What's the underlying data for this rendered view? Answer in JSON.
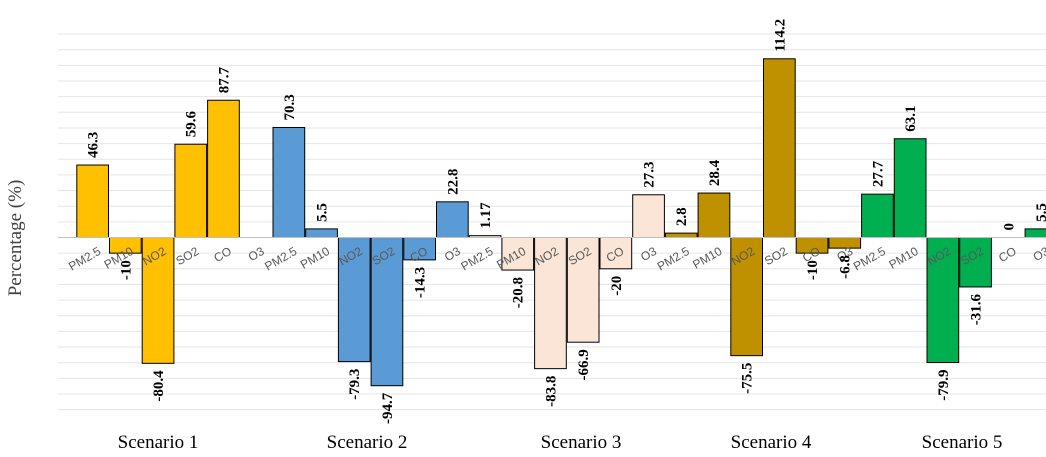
{
  "chart_data": {
    "type": "bar",
    "ylabel": "Percentage (%)",
    "ylim": [
      -110,
      130
    ],
    "grid": true,
    "categories": [
      "PM2.5",
      "PM10",
      "NO2",
      "SO2",
      "CO",
      "O3"
    ],
    "groups": [
      {
        "name": "Scenario 1",
        "color": "#FFC000",
        "values": [
          46.3,
          -10,
          -80.4,
          59.6,
          87.7,
          null
        ],
        "labels": [
          "46.3",
          "-10",
          "-80.4",
          "59.6",
          "87.7",
          ""
        ]
      },
      {
        "name": "Scenario 2",
        "color": "#5B9BD5",
        "values": [
          70.3,
          5.5,
          -79.3,
          -94.7,
          -14.3,
          22.8
        ],
        "labels": [
          "70.3",
          "5.5",
          "-79.3",
          "-94.7",
          "-14.3",
          "22.8"
        ]
      },
      {
        "name": "Scenario 3",
        "color": "#FBE5D6",
        "values": [
          1.17,
          -20.8,
          -83.8,
          -66.9,
          -20,
          27.3
        ],
        "labels": [
          "1.17",
          "-20.8",
          "-83.8",
          "-66.9",
          "-20",
          "27.3"
        ]
      },
      {
        "name": "Scenario 4",
        "color": "#BF9000",
        "values": [
          2.8,
          28.4,
          -75.5,
          114.2,
          -10,
          -6.8
        ],
        "labels": [
          "2.8",
          "28.4",
          "-75.5",
          "114.2",
          "-10",
          "-6.8"
        ]
      },
      {
        "name": "Scenario 5",
        "color": "#00B050",
        "values": [
          27.7,
          63.1,
          -79.9,
          -31.6,
          0,
          5.5
        ],
        "labels": [
          "27.7",
          "63.1",
          "-79.9",
          "-31.6",
          "0",
          "5.5"
        ]
      }
    ]
  }
}
